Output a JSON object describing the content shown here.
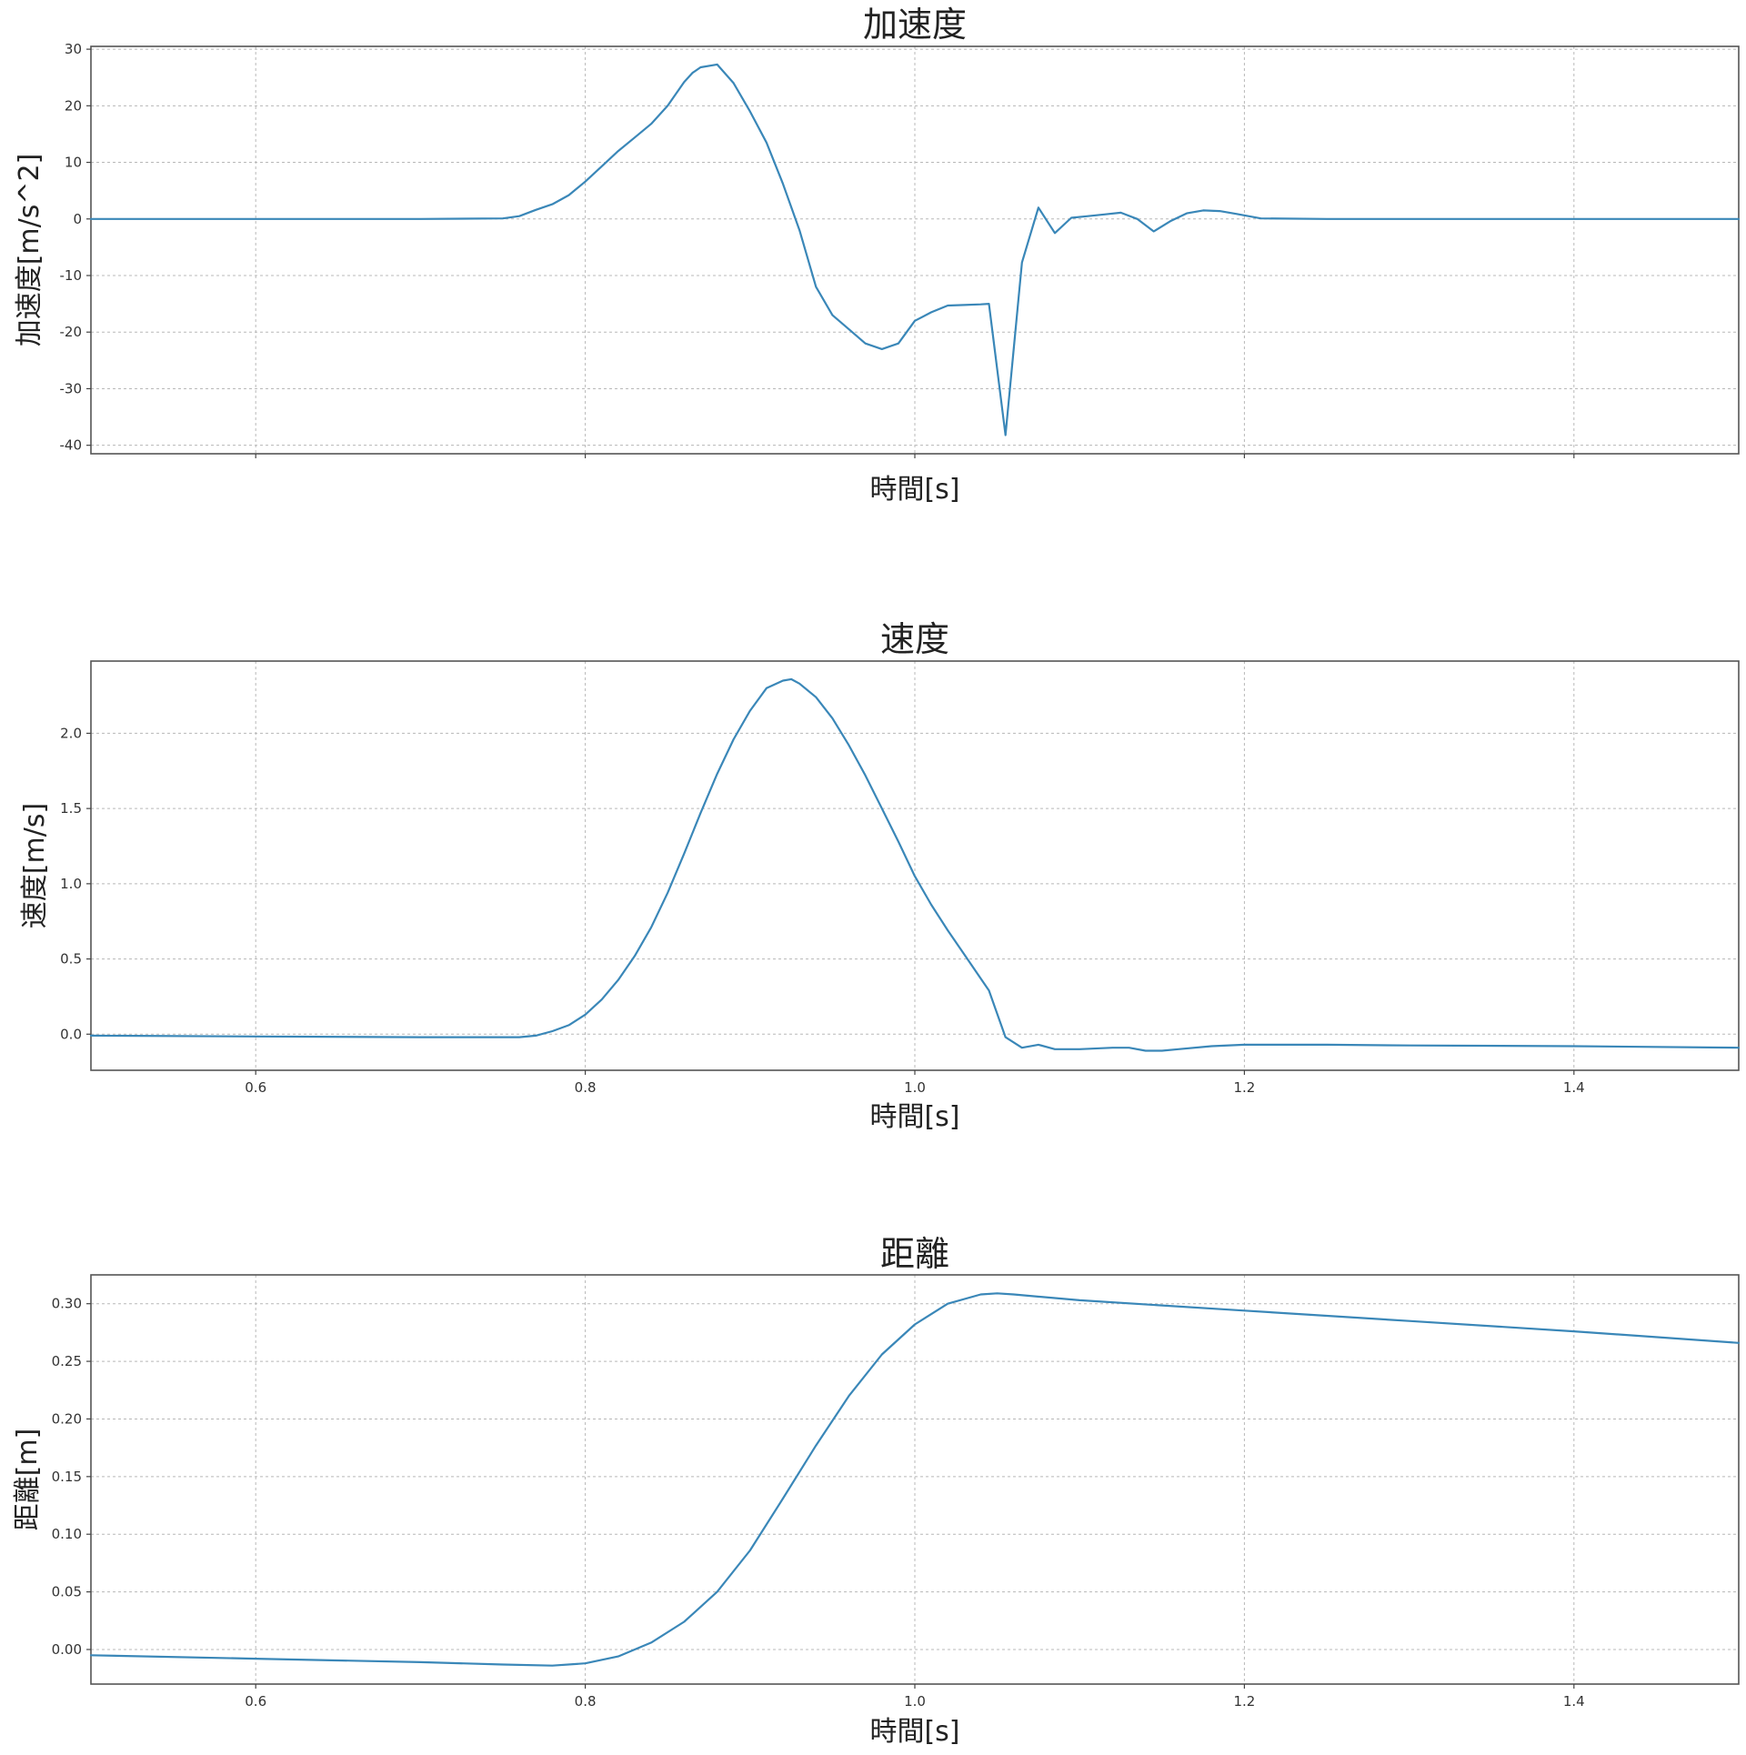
{
  "figure": {
    "line_color": "#3a87b8"
  },
  "chart_data": [
    {
      "type": "line",
      "title": "加速度",
      "xlabel": "時間[s]",
      "ylabel": "加速度[m/s^2]",
      "xlim": [
        0.5,
        1.5
      ],
      "ylim": [
        -41.5,
        30.5
      ],
      "x_ticks": [
        0.6,
        0.8,
        1.0,
        1.2,
        1.4
      ],
      "x_tick_labels": [],
      "y_ticks": [
        -40,
        -30,
        -20,
        -10,
        0,
        10,
        20,
        30
      ],
      "y_tick_labels": [
        "-40",
        "-30",
        "-20",
        "-10",
        "0",
        "10",
        "20",
        "30"
      ],
      "grid": true,
      "series": [
        {
          "x": [
            0.5,
            0.6,
            0.7,
            0.75,
            0.76,
            0.77,
            0.78,
            0.79,
            0.8,
            0.81,
            0.82,
            0.83,
            0.84,
            0.85,
            0.86,
            0.865,
            0.87,
            0.88,
            0.89,
            0.9,
            0.91,
            0.92,
            0.93,
            0.94,
            0.95,
            0.96,
            0.97,
            0.98,
            0.99,
            1.0,
            1.01,
            1.02,
            1.03,
            1.04,
            1.045,
            1.055,
            1.065,
            1.075,
            1.085,
            1.095,
            1.105,
            1.115,
            1.125,
            1.135,
            1.145,
            1.155,
            1.165,
            1.175,
            1.185,
            1.195,
            1.21,
            1.25,
            1.3,
            1.4,
            1.5
          ],
          "y": [
            0,
            0,
            0,
            0.1,
            0.5,
            1.6,
            2.6,
            4.2,
            6.6,
            9.3,
            12.0,
            14.4,
            16.8,
            20.0,
            24.2,
            25.8,
            26.8,
            27.3,
            24.0,
            19.0,
            13.5,
            6.2,
            -2.0,
            -12.0,
            -17.0,
            -19.5,
            -22.0,
            -23.0,
            -22.0,
            -18.0,
            -16.5,
            -15.3,
            -15.2,
            -15.1,
            -15.0,
            -38.2,
            -7.7,
            2.0,
            -2.5,
            0.2,
            0.5,
            0.8,
            1.1,
            0.0,
            -2.2,
            -0.4,
            1.0,
            1.5,
            1.4,
            0.9,
            0.1,
            0,
            0,
            0,
            0
          ]
        }
      ]
    },
    {
      "type": "line",
      "title": "速度",
      "xlabel": "時間[s]",
      "ylabel": "速度[m/s]",
      "xlim": [
        0.5,
        1.5
      ],
      "ylim": [
        -0.24,
        2.48
      ],
      "x_ticks": [
        0.6,
        0.8,
        1.0,
        1.2,
        1.4
      ],
      "x_tick_labels": [
        "0.6",
        "0.8",
        "1.0",
        "1.2",
        "1.4"
      ],
      "y_ticks": [
        0.0,
        0.5,
        1.0,
        1.5,
        2.0
      ],
      "y_tick_labels": [
        "0.0",
        "0.5",
        "1.0",
        "1.5",
        "2.0"
      ],
      "grid": true,
      "series": [
        {
          "x": [
            0.5,
            0.6,
            0.7,
            0.76,
            0.77,
            0.78,
            0.79,
            0.8,
            0.81,
            0.82,
            0.83,
            0.84,
            0.85,
            0.86,
            0.87,
            0.88,
            0.89,
            0.9,
            0.91,
            0.92,
            0.925,
            0.93,
            0.94,
            0.95,
            0.96,
            0.97,
            0.98,
            0.99,
            1.0,
            1.01,
            1.02,
            1.03,
            1.04,
            1.045,
            1.055,
            1.065,
            1.075,
            1.085,
            1.1,
            1.12,
            1.13,
            1.14,
            1.15,
            1.16,
            1.18,
            1.2,
            1.25,
            1.3,
            1.4,
            1.5
          ],
          "y": [
            -0.01,
            -0.015,
            -0.02,
            -0.02,
            -0.01,
            0.02,
            0.06,
            0.13,
            0.23,
            0.36,
            0.52,
            0.71,
            0.94,
            1.2,
            1.47,
            1.73,
            1.96,
            2.15,
            2.3,
            2.35,
            2.36,
            2.33,
            2.24,
            2.1,
            1.92,
            1.72,
            1.5,
            1.28,
            1.05,
            0.86,
            0.69,
            0.53,
            0.37,
            0.29,
            -0.02,
            -0.09,
            -0.07,
            -0.1,
            -0.1,
            -0.09,
            -0.09,
            -0.11,
            -0.11,
            -0.1,
            -0.08,
            -0.07,
            -0.07,
            -0.075,
            -0.08,
            -0.09
          ]
        }
      ]
    },
    {
      "type": "line",
      "title": "距離",
      "xlabel": "時間[s]",
      "ylabel": "距離[m]",
      "xlim": [
        0.5,
        1.5
      ],
      "ylim": [
        -0.03,
        0.325
      ],
      "x_ticks": [
        0.6,
        0.8,
        1.0,
        1.2,
        1.4
      ],
      "x_tick_labels": [
        "0.6",
        "0.8",
        "1.0",
        "1.2",
        "1.4"
      ],
      "y_ticks": [
        0.0,
        0.05,
        0.1,
        0.15,
        0.2,
        0.25,
        0.3
      ],
      "y_tick_labels": [
        "0.00",
        "0.05",
        "0.10",
        "0.15",
        "0.20",
        "0.25",
        "0.30"
      ],
      "grid": true,
      "series": [
        {
          "x": [
            0.5,
            0.6,
            0.7,
            0.75,
            0.78,
            0.8,
            0.82,
            0.84,
            0.86,
            0.88,
            0.9,
            0.92,
            0.94,
            0.96,
            0.98,
            1.0,
            1.02,
            1.04,
            1.05,
            1.06,
            1.1,
            1.2,
            1.3,
            1.4,
            1.5
          ],
          "y": [
            -0.005,
            -0.008,
            -0.011,
            -0.013,
            -0.014,
            -0.012,
            -0.006,
            0.006,
            0.024,
            0.05,
            0.086,
            0.131,
            0.177,
            0.22,
            0.256,
            0.282,
            0.3,
            0.308,
            0.309,
            0.308,
            0.303,
            0.294,
            0.285,
            0.276,
            0.266
          ]
        }
      ]
    }
  ]
}
